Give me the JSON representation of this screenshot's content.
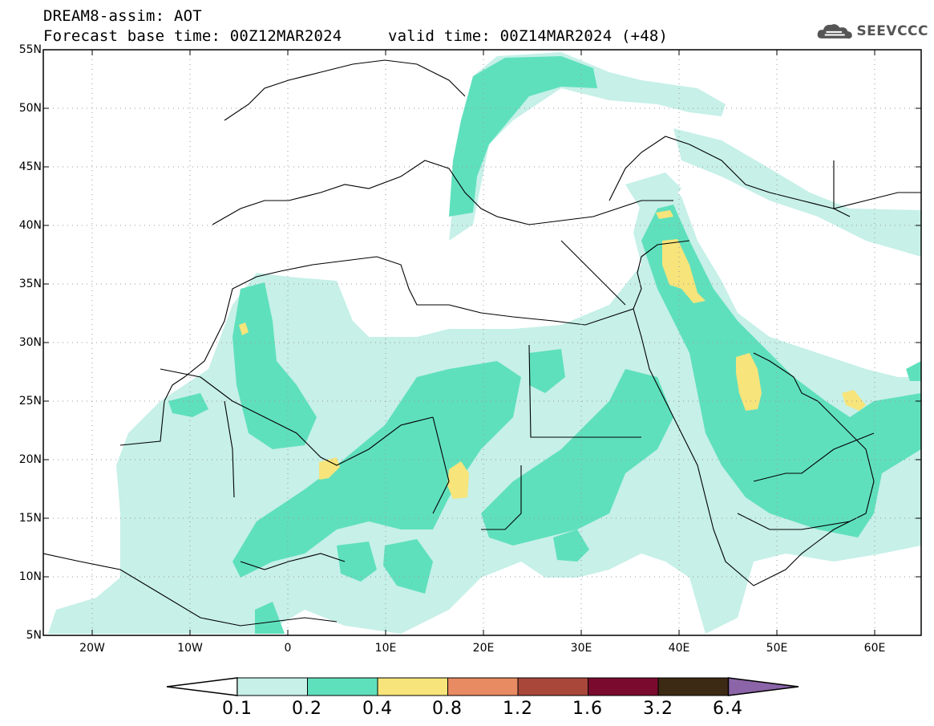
{
  "header": {
    "line1": "DREAM8-assim: AOT",
    "line2": "Forecast base time: 00Z12MAR2024",
    "line3": "valid time: 00Z14MAR2024 (+48)"
  },
  "logo": {
    "text": "SEEVCCC",
    "icon": "cloud-icon"
  },
  "map": {
    "lat_labels": [
      "55N",
      "50N",
      "45N",
      "40N",
      "35N",
      "30N",
      "25N",
      "20N",
      "15N",
      "10N",
      "5N"
    ],
    "lon_labels": [
      "20W",
      "10W",
      "0",
      "10E",
      "20E",
      "30E",
      "40E",
      "50E",
      "60E"
    ],
    "grid": "dotted"
  },
  "colorbar": {
    "labels": [
      "0.1",
      "0.2",
      "0.4",
      "0.8",
      "1.2",
      "1.6",
      "3.2",
      "6.4"
    ],
    "colors": [
      "#ffffff",
      "#c6f0e8",
      "#5fe0bd",
      "#f7e47a",
      "#e88a62",
      "#a9483a",
      "#7b0b2e",
      "#3d2a14",
      "#8b65a8"
    ]
  },
  "colors": {
    "aot_0_1": "#c6f0e8",
    "aot_0_2": "#5fe0bd",
    "aot_0_4": "#f7e47a"
  }
}
